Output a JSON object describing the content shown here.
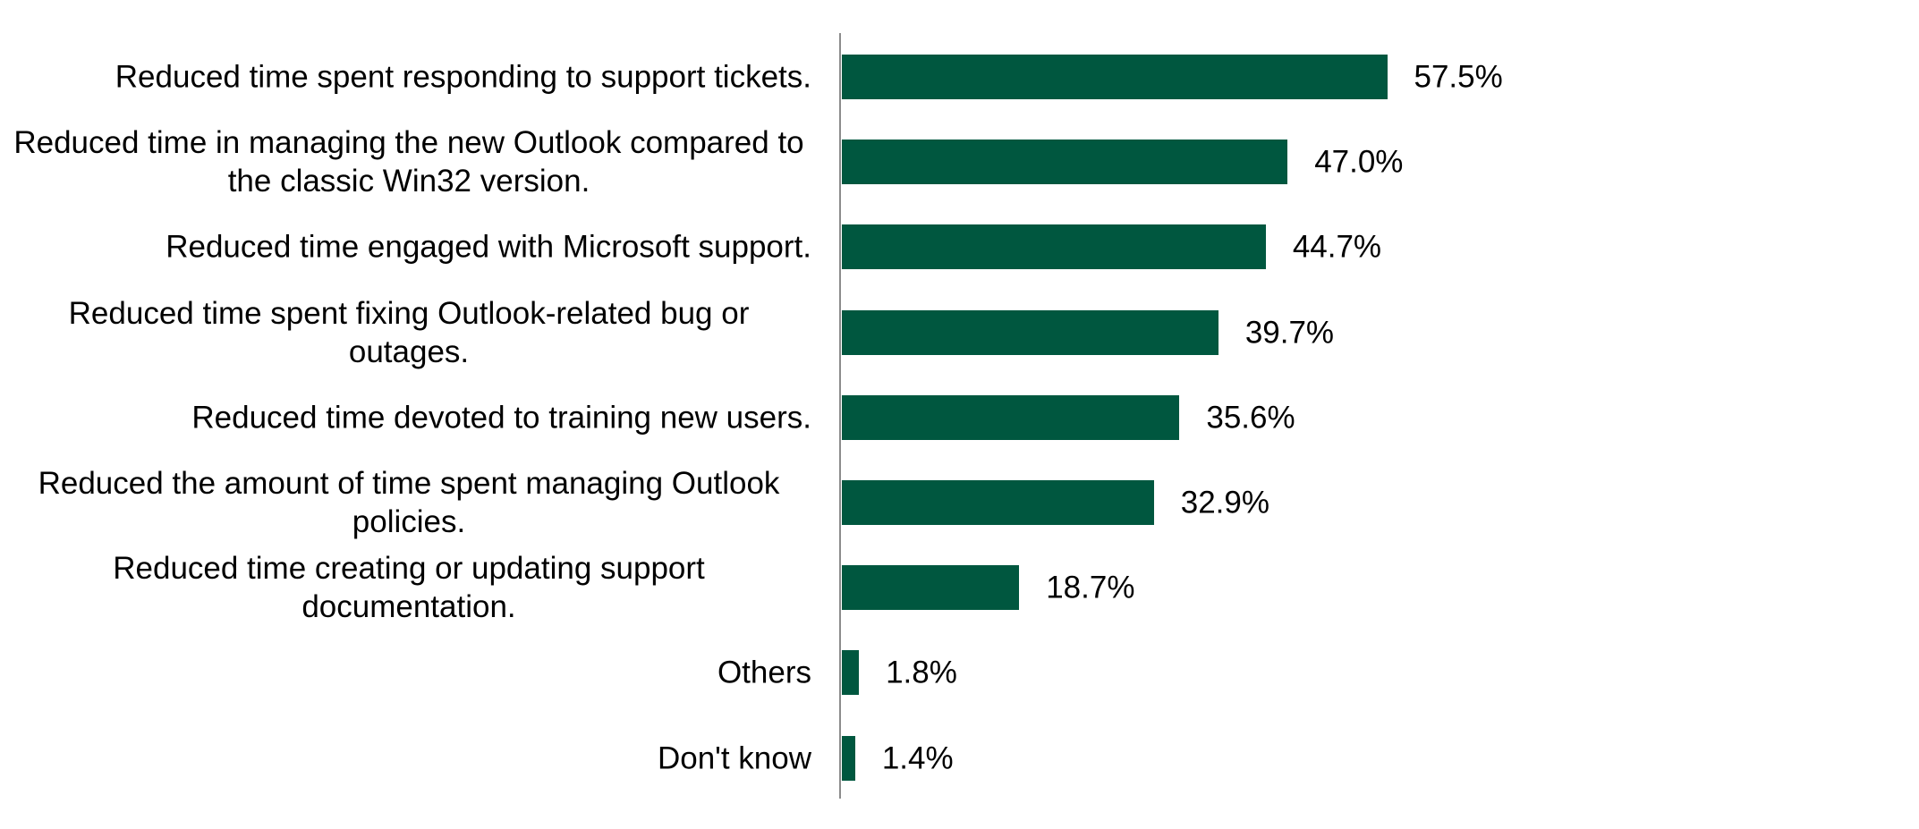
{
  "chart_data": {
    "type": "hbar",
    "categories": [
      "Reduced time spent responding to support tickets.",
      "Reduced time in managing the new Outlook compared to the classic Win32 version.",
      "Reduced time engaged with Microsoft support.",
      "Reduced time spent fixing Outlook-related bug or outages.",
      "Reduced time devoted to training new users.",
      "Reduced the amount of time spent managing Outlook policies.",
      "Reduced time creating or updating support documentation.",
      "Others",
      "Don't know"
    ],
    "values": [
      57.5,
      47.0,
      44.7,
      39.7,
      35.6,
      32.9,
      18.7,
      1.8,
      1.4
    ],
    "value_labels": [
      "57.5%",
      "47.0%",
      "44.7%",
      "39.7%",
      "35.6%",
      "32.9%",
      "18.7%",
      "1.8%",
      "1.4%"
    ],
    "color": "#00573f"
  }
}
